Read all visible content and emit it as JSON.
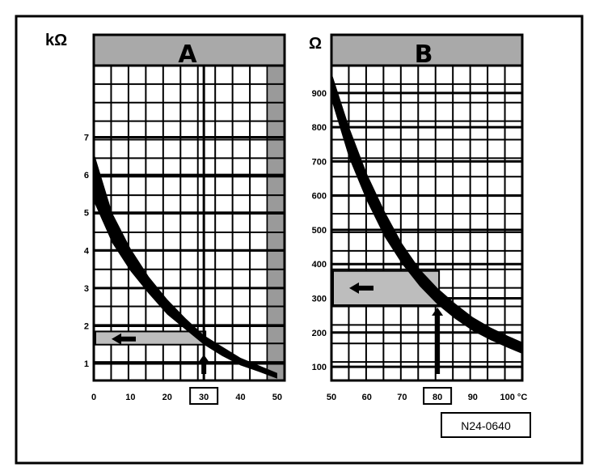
{
  "reference_code": "N24-0640",
  "chart_data": [
    {
      "type": "area",
      "title": "A",
      "ylabel": "kΩ",
      "xlabel": "",
      "x_ticks": [
        "0",
        "10",
        "20",
        "30",
        "40",
        "50"
      ],
      "y_ticks": [
        "1",
        "2",
        "3",
        "4",
        "5",
        "6",
        "7"
      ],
      "xlim": [
        0,
        52
      ],
      "ylim": [
        0.55,
        8.9
      ],
      "grid": true,
      "band_color": "#000000",
      "band": {
        "x": [
          0,
          5,
          10,
          15,
          20,
          25,
          30,
          35,
          40,
          45,
          50
        ],
        "upper": [
          6.6,
          5.0,
          4.05,
          3.3,
          2.7,
          2.2,
          1.75,
          1.45,
          1.15,
          0.95,
          0.75
        ],
        "lower": [
          5.3,
          4.2,
          3.45,
          2.85,
          2.3,
          1.9,
          1.5,
          1.2,
          0.95,
          0.78,
          0.6
        ]
      },
      "marker_x": "30",
      "marker_x_value": 30,
      "shaded_range": [
        1.5,
        1.85
      ],
      "arrow_at_y": 1.65
    },
    {
      "type": "area",
      "title": "B",
      "ylabel": "Ω",
      "xlabel": "",
      "x_ticks": [
        "50",
        "60",
        "70",
        "80",
        "90",
        "100 °C"
      ],
      "y_ticks": [
        "100",
        "200",
        "300",
        "400",
        "500",
        "600",
        "700",
        "800",
        "900"
      ],
      "xlim": [
        50,
        104
      ],
      "ylim": [
        60,
        980
      ],
      "grid": true,
      "band_color": "#000000",
      "band": {
        "x": [
          50,
          55,
          60,
          65,
          70,
          75,
          80,
          85,
          90,
          95,
          100,
          104
        ],
        "upper": [
          960,
          800,
          665,
          555,
          460,
          385,
          330,
          285,
          245,
          215,
          190,
          172
        ],
        "lower": [
          880,
          710,
          585,
          480,
          400,
          335,
          282,
          240,
          205,
          178,
          155,
          138
        ]
      },
      "marker_x": "80",
      "marker_x_value": 80,
      "shaded_range": [
        280,
        380
      ],
      "arrow_at_y": 330
    }
  ]
}
